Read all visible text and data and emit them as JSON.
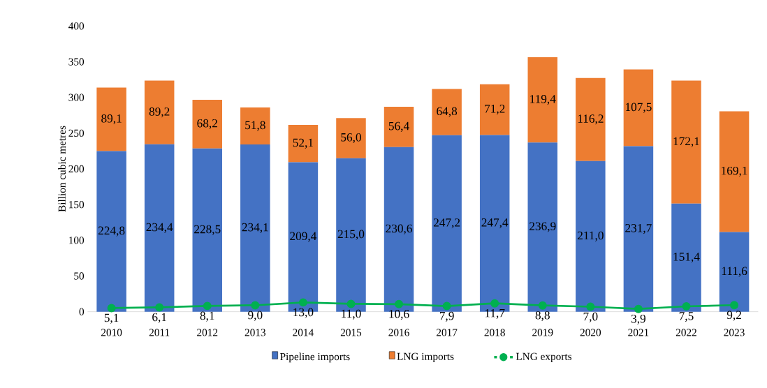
{
  "chart_data": {
    "type": "bar",
    "stacked": true,
    "ylabel": "Billion cubic metres",
    "categories": [
      "2010",
      "2011",
      "2012",
      "2013",
      "2014",
      "2015",
      "2016",
      "2017",
      "2018",
      "2019",
      "2020",
      "2021",
      "2022",
      "2023"
    ],
    "series": [
      {
        "name": "Pipeline imports",
        "color": "#4472c4",
        "values": [
          224.8,
          234.4,
          228.5,
          234.1,
          209.4,
          215.0,
          230.6,
          247.2,
          247.4,
          236.9,
          211.0,
          231.7,
          151.4,
          111.6
        ],
        "value_labels": [
          "224,8",
          "234,4",
          "228,5",
          "234,1",
          "209,4",
          "215,0",
          "230,6",
          "247,2",
          "247,4",
          "236,9",
          "211,0",
          "231,7",
          "151,4",
          "111,6"
        ]
      },
      {
        "name": "LNG imports",
        "color": "#ed7d31",
        "values": [
          89.1,
          89.2,
          68.2,
          51.8,
          52.1,
          56.0,
          56.4,
          64.8,
          71.2,
          119.4,
          116.2,
          107.5,
          172.1,
          169.1
        ],
        "value_labels": [
          "89,1",
          "89,2",
          "68,2",
          "51,8",
          "52,1",
          "56,0",
          "56,4",
          "64,8",
          "71,2",
          "119,4",
          "116,2",
          "107,5",
          "172,1",
          "169,1"
        ]
      },
      {
        "name": "LNG exports",
        "type": "line",
        "marker": "circle",
        "color": "#00b050",
        "values": [
          5.1,
          6.1,
          8.1,
          9.0,
          13.0,
          11.0,
          10.6,
          7.9,
          11.7,
          8.8,
          7.0,
          3.9,
          7.5,
          9.2
        ],
        "value_labels": [
          "5,1",
          "6,1",
          "8,1",
          "9,0",
          "13,0",
          "11,0",
          "10,6",
          "7,9",
          "11,7",
          "8,8",
          "7,0",
          "3,9",
          "7,5",
          "9,2"
        ]
      }
    ],
    "ylim": [
      0,
      400
    ],
    "yticks": [
      0,
      50,
      100,
      150,
      200,
      250,
      300,
      350,
      400
    ],
    "legend": "bottom"
  }
}
